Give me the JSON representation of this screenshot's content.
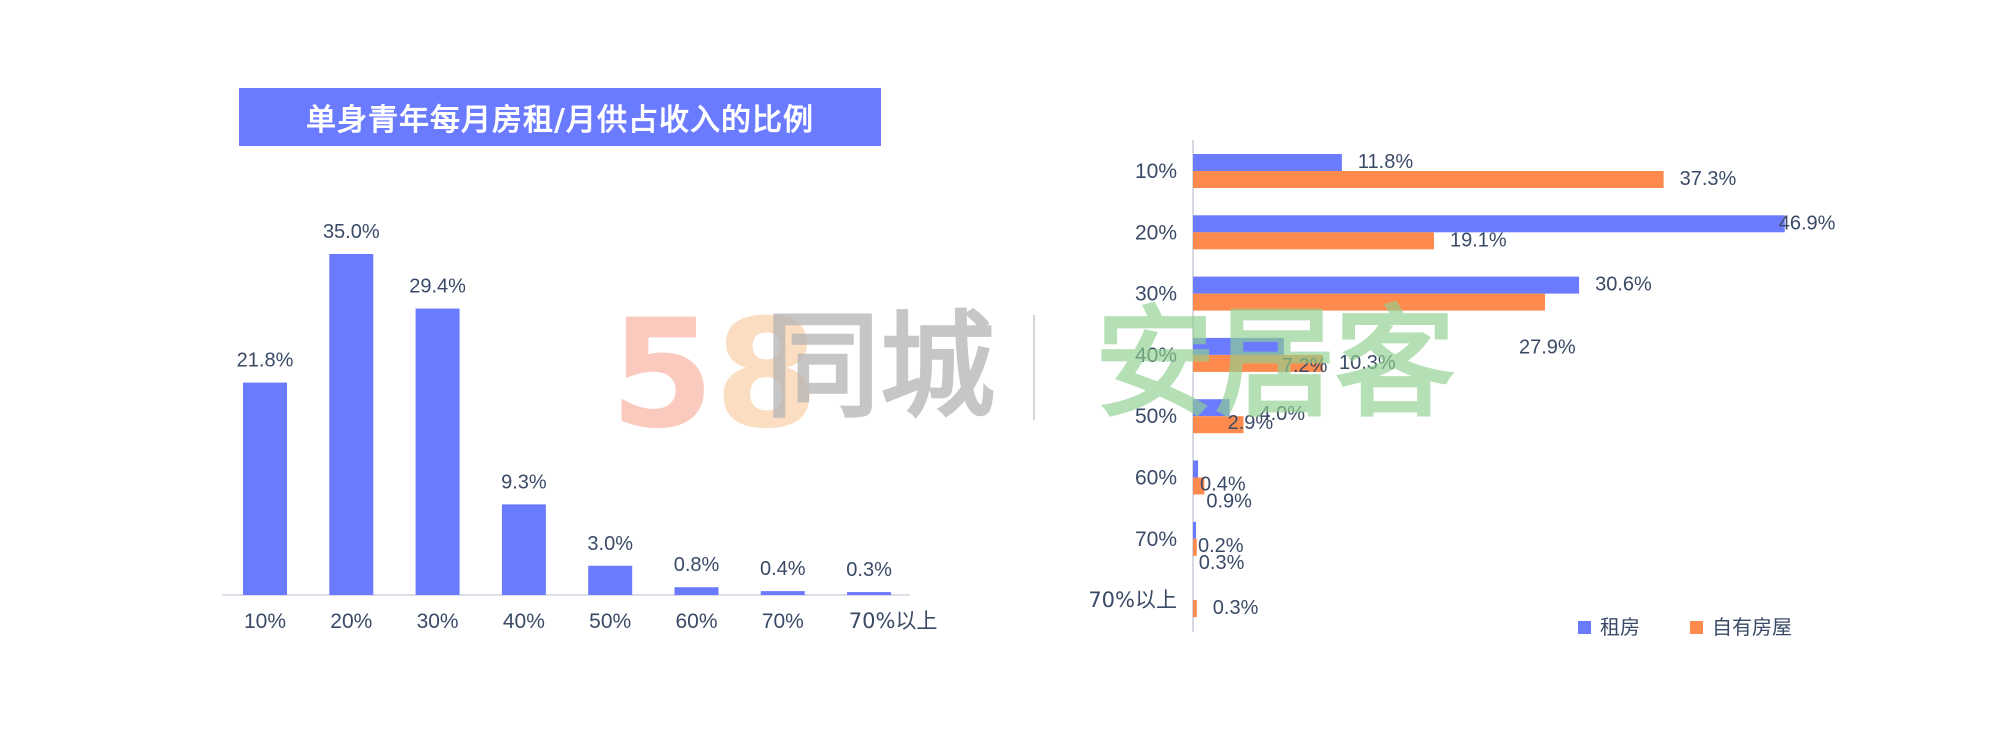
{
  "title": "单身青年每月房租/月供占收入的比例",
  "watermark": {
    "brand_58": "58",
    "brand_5": "5",
    "brand_8": "8",
    "brand_tongcheng": "同城",
    "brand_anjuke": "安居客"
  },
  "colors": {
    "rent": "#6b7bff",
    "own": "#ff8a4d",
    "title_bg": "#6b7bff",
    "label": "#3a4a66"
  },
  "chart_data": [
    {
      "type": "bar",
      "title": "单身青年每月房租/月供占收入的比例",
      "categories": [
        "10%",
        "20%",
        "30%",
        "40%",
        "50%",
        "60%",
        "70%",
        "70%以上"
      ],
      "values": [
        21.8,
        35.0,
        29.4,
        9.3,
        3.0,
        0.8,
        0.4,
        0.3
      ],
      "data_labels": [
        "21.8%",
        "35.0%",
        "29.4%",
        "9.3%",
        "3.0%",
        "0.8%",
        "0.4%",
        "0.3%"
      ],
      "ylim": [
        0,
        35
      ],
      "grid": false,
      "legend": "none"
    },
    {
      "type": "bar",
      "orientation": "horizontal",
      "categories": [
        "10%",
        "20%",
        "30%",
        "40%",
        "50%",
        "60%",
        "70%",
        "70%以上"
      ],
      "series": [
        {
          "name": "租房",
          "values": [
            11.8,
            46.9,
            30.6,
            7.2,
            2.9,
            0.4,
            0.2,
            0.0
          ],
          "data_labels": [
            "11.8%",
            "46.9%",
            "30.6%",
            "7.2%",
            "2.9%",
            "0.4%",
            "0.2%",
            ""
          ]
        },
        {
          "name": "自有房屋",
          "values": [
            37.3,
            19.1,
            27.9,
            10.3,
            4.0,
            0.9,
            0.3,
            0.3
          ],
          "data_labels": [
            "37.3%",
            "19.1%",
            "27.9%",
            "10.3%",
            "4.0%",
            "0.9%",
            "0.3%",
            "0.3%"
          ]
        }
      ],
      "xlim": [
        0,
        47
      ],
      "grid": false,
      "legend": "bottom-right"
    }
  ]
}
